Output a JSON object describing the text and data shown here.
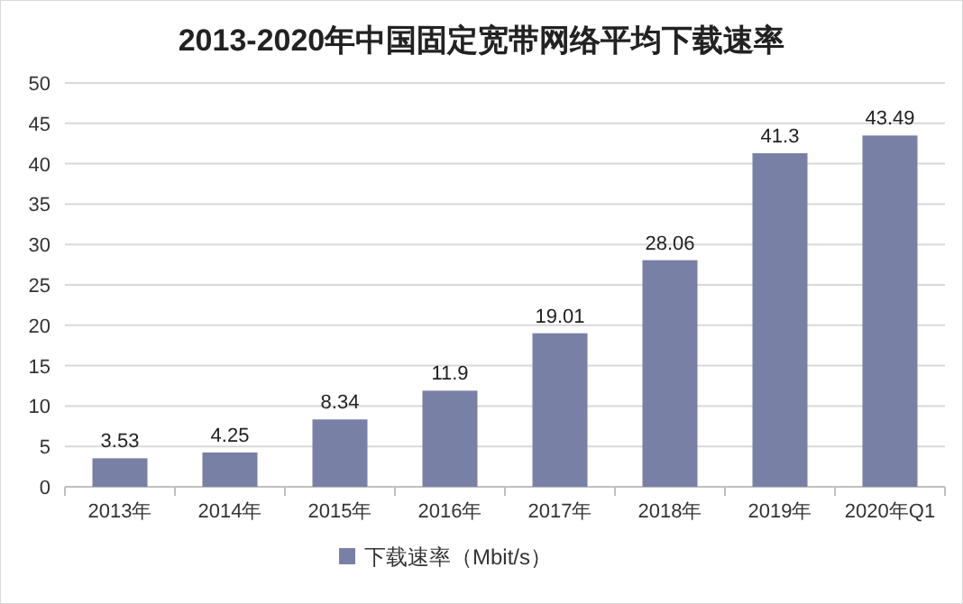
{
  "chart_data": {
    "type": "bar",
    "title": "2013-2020年中国固定宽带网络平均下载速率",
    "categories": [
      "2013年",
      "2014年",
      "2015年",
      "2016年",
      "2017年",
      "2018年",
      "2019年",
      "2020年Q1"
    ],
    "series": [
      {
        "name": "下载速率（Mbit/s）",
        "color": "#7880a6",
        "values": [
          3.53,
          4.25,
          8.34,
          11.9,
          19.01,
          28.06,
          41.3,
          43.49
        ]
      }
    ],
    "ylim": [
      0,
      50
    ],
    "yticks": [
      0,
      5,
      10,
      15,
      20,
      25,
      30,
      35,
      40,
      45,
      50
    ],
    "grid": "y",
    "legend": "bottom",
    "data_labels": true
  }
}
